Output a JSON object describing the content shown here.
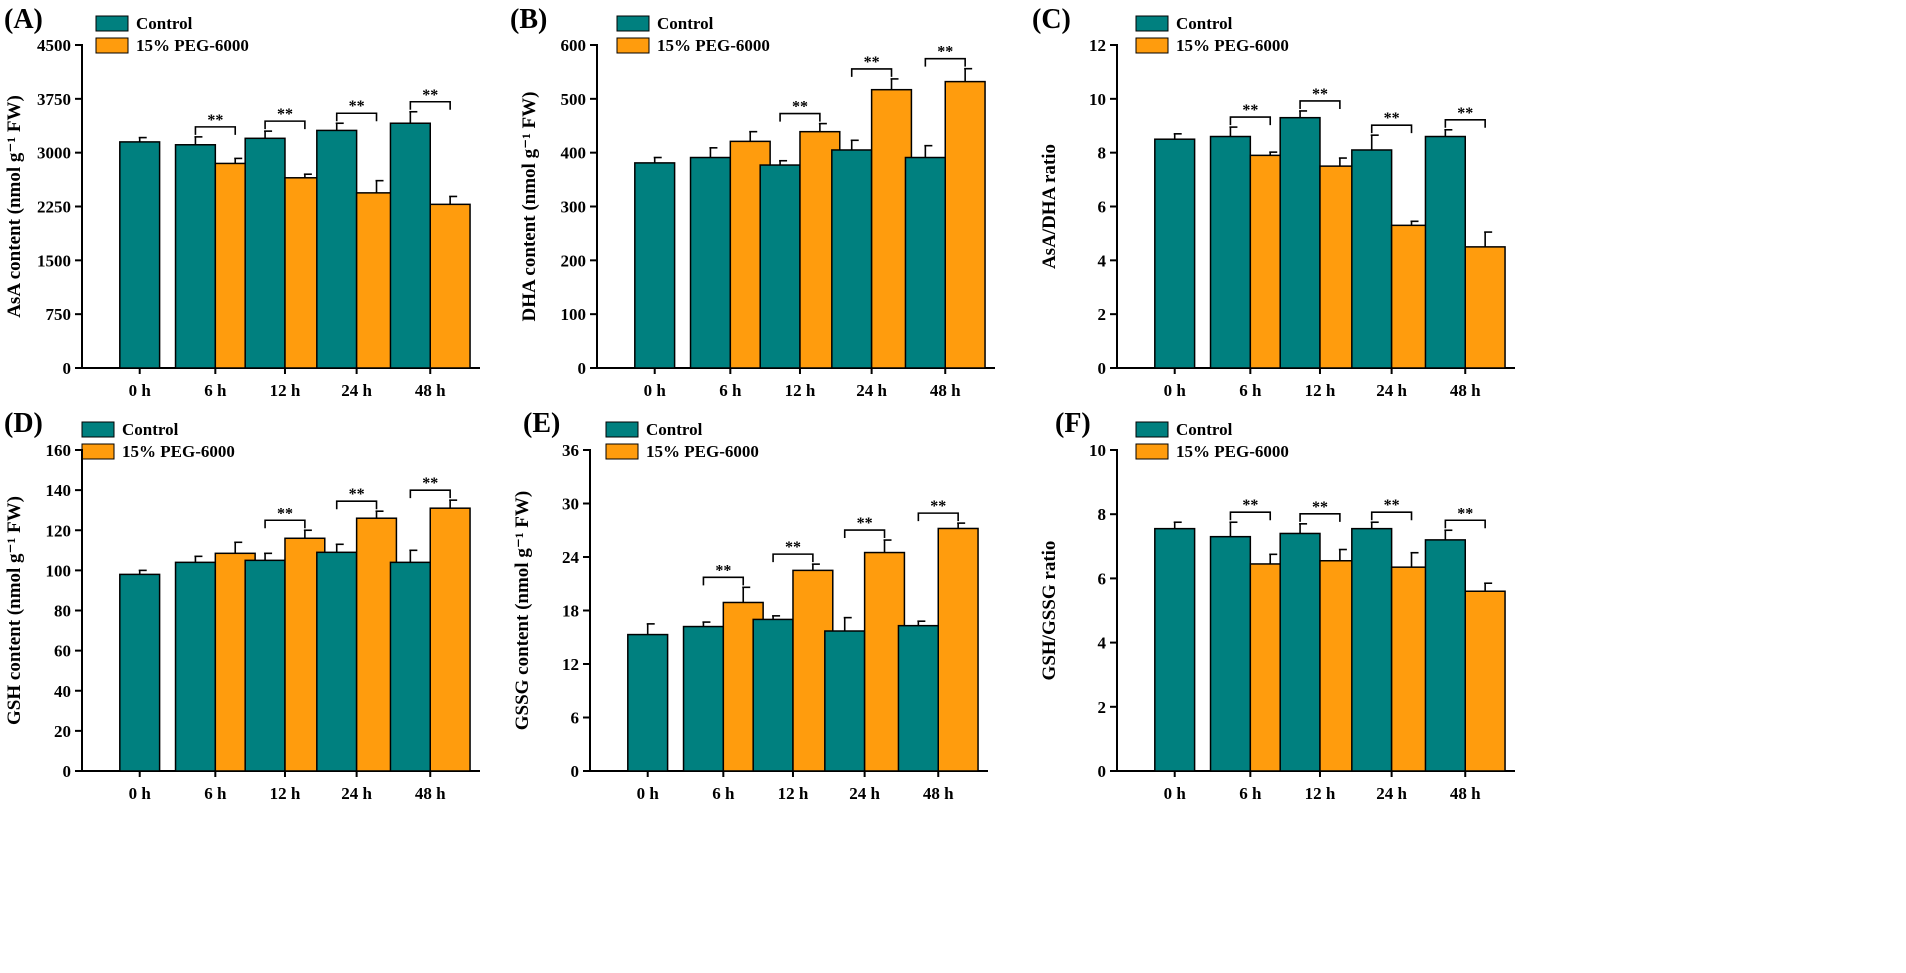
{
  "colors": {
    "control": "#00807f",
    "peg": "#ff9c0d",
    "ink": "#000000"
  },
  "legend": [
    "Control",
    "15% PEG-6000"
  ],
  "categories": [
    "0 h",
    "6 h",
    "12 h",
    "24 h",
    "48 h"
  ],
  "chart_data": [
    {
      "type": "bar",
      "label": "(A)",
      "ylabel": "AsA content (nmol g⁻¹ FW)",
      "ylim": [
        0,
        4500
      ],
      "yticks": [
        0,
        750,
        1500,
        2250,
        3000,
        3750,
        4500
      ],
      "categories": [
        "0 h",
        "6 h",
        "12 h",
        "24 h",
        "48 h"
      ],
      "series": [
        {
          "name": "Control",
          "values": [
            3150,
            3110,
            3200,
            3310,
            3410
          ],
          "errors": [
            60,
            110,
            100,
            100,
            160
          ]
        },
        {
          "name": "15% PEG-6000",
          "values": [
            null,
            2850,
            2650,
            2440,
            2280
          ],
          "errors": [
            null,
            70,
            50,
            170,
            110
          ]
        }
      ],
      "significance": [
        "",
        "**",
        "**",
        "**",
        "**"
      ]
    },
    {
      "type": "bar",
      "label": "(B)",
      "ylabel": "DHA content (nmol g⁻¹ FW)",
      "ylim": [
        0,
        600
      ],
      "yticks": [
        0,
        100,
        200,
        300,
        400,
        500,
        600
      ],
      "categories": [
        "0 h",
        "6 h",
        "12 h",
        "24 h",
        "48 h"
      ],
      "series": [
        {
          "name": "Control",
          "values": [
            381,
            391,
            377,
            405,
            391
          ],
          "errors": [
            10,
            18,
            8,
            18,
            22
          ]
        },
        {
          "name": "15% PEG-6000",
          "values": [
            null,
            421,
            439,
            517,
            532
          ],
          "errors": [
            null,
            18,
            15,
            20,
            24
          ]
        }
      ],
      "significance": [
        "",
        "",
        "**",
        "**",
        "**"
      ]
    },
    {
      "type": "bar",
      "label": "(C)",
      "ylabel": "AsA/DHA ratio",
      "ylim": [
        0,
        12
      ],
      "yticks": [
        0,
        2,
        4,
        6,
        8,
        10,
        12
      ],
      "categories": [
        "0 h",
        "6 h",
        "12 h",
        "24 h",
        "48 h"
      ],
      "series": [
        {
          "name": "Control",
          "values": [
            8.5,
            8.6,
            9.3,
            8.1,
            8.6
          ],
          "errors": [
            0.2,
            0.35,
            0.25,
            0.55,
            0.25
          ]
        },
        {
          "name": "15% PEG-6000",
          "values": [
            null,
            7.9,
            7.5,
            5.3,
            4.5
          ],
          "errors": [
            null,
            0.12,
            0.3,
            0.15,
            0.55
          ]
        }
      ],
      "significance": [
        "",
        "**",
        "**",
        "**",
        "**"
      ]
    },
    {
      "type": "bar",
      "label": "(D)",
      "ylabel": "GSH content (nmol g⁻¹ FW)",
      "ylim": [
        0,
        160
      ],
      "yticks": [
        0,
        20,
        40,
        60,
        80,
        100,
        120,
        140,
        160
      ],
      "categories": [
        "0 h",
        "6 h",
        "12 h",
        "24 h",
        "48 h"
      ],
      "series": [
        {
          "name": "Control",
          "values": [
            98,
            104,
            105,
            109,
            104
          ],
          "errors": [
            2,
            3,
            3.5,
            4,
            6
          ]
        },
        {
          "name": "15% PEG-6000",
          "values": [
            null,
            108.5,
            116,
            126,
            131
          ],
          "errors": [
            null,
            5.5,
            4,
            3.5,
            4
          ]
        }
      ],
      "significance": [
        "",
        "",
        "**",
        "**",
        "**"
      ]
    },
    {
      "type": "bar",
      "label": "(E)",
      "ylabel": "GSSG content (nmol g⁻¹ FW)",
      "ylim": [
        0,
        36
      ],
      "yticks": [
        0,
        6,
        12,
        18,
        24,
        30,
        36
      ],
      "categories": [
        "0 h",
        "6 h",
        "12 h",
        "24 h",
        "48 h"
      ],
      "series": [
        {
          "name": "Control",
          "values": [
            15.3,
            16.2,
            17.0,
            15.7,
            16.3
          ],
          "errors": [
            1.2,
            0.5,
            0.4,
            1.5,
            0.5
          ]
        },
        {
          "name": "15% PEG-6000",
          "values": [
            null,
            18.9,
            22.5,
            24.5,
            27.2
          ],
          "errors": [
            null,
            1.7,
            0.7,
            1.4,
            0.6
          ]
        }
      ],
      "significance": [
        "",
        "**",
        "**",
        "**",
        "**"
      ]
    },
    {
      "type": "bar",
      "label": "(F)",
      "ylabel": "GSH/GSSG ratio",
      "ylim": [
        0,
        10
      ],
      "yticks": [
        0,
        2,
        4,
        6,
        8,
        10
      ],
      "categories": [
        "0 h",
        "6 h",
        "12 h",
        "24 h",
        "48 h"
      ],
      "series": [
        {
          "name": "Control",
          "values": [
            7.55,
            7.3,
            7.4,
            7.55,
            7.2
          ],
          "errors": [
            0.2,
            0.45,
            0.3,
            0.2,
            0.3
          ]
        },
        {
          "name": "15% PEG-6000",
          "values": [
            null,
            6.45,
            6.55,
            6.35,
            5.6
          ],
          "errors": [
            null,
            0.3,
            0.35,
            0.45,
            0.25
          ]
        }
      ],
      "significance": [
        "",
        "**",
        "**",
        "**",
        "**"
      ]
    }
  ]
}
